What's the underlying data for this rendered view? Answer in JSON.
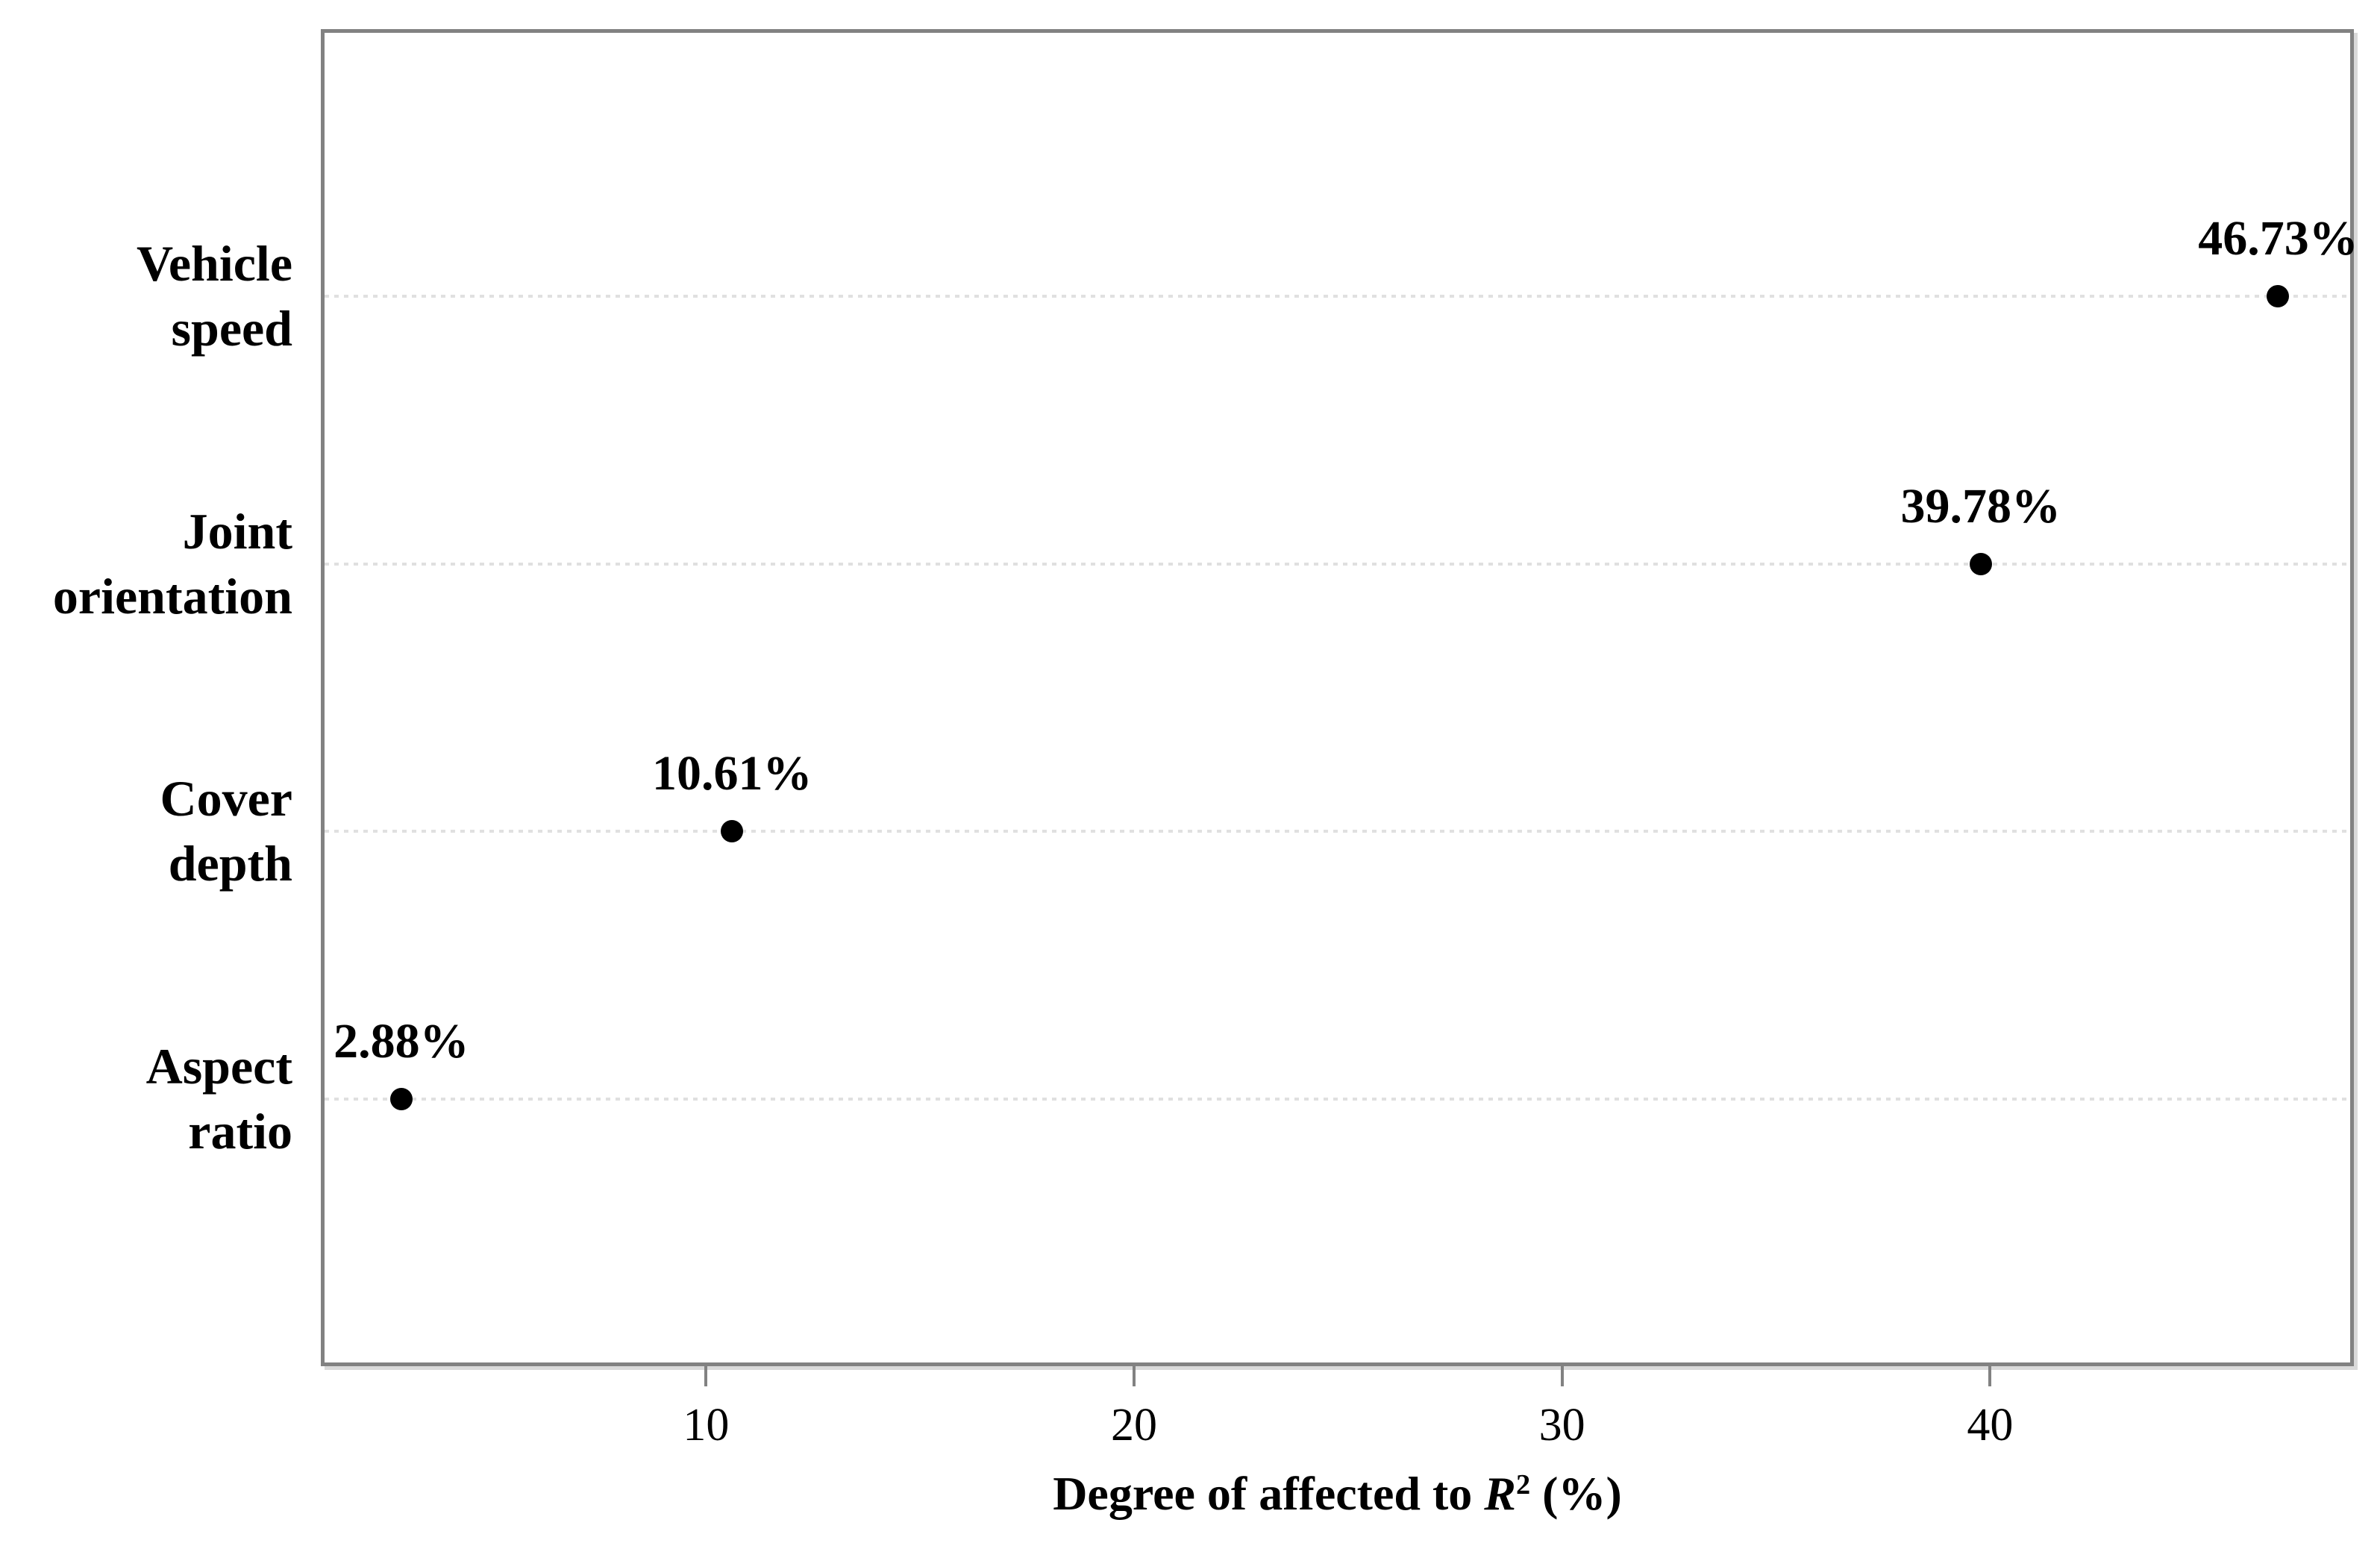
{
  "figure": {
    "background": "#ffffff",
    "x_axis_title": {
      "prefix": "Degree of affected to ",
      "symbol": "R",
      "superscript": "2",
      "suffix": " (%)"
    }
  },
  "chart_data": {
    "type": "scatter",
    "subtype": "horizontal-category-dot-plot",
    "title": "",
    "xlabel": "Degree of affected to R^2 (%)",
    "ylabel": "",
    "xlim": [
      1,
      48.5
    ],
    "x_ticks": [
      10,
      20,
      30,
      40
    ],
    "grid": "horizontal dotted lines, one per category",
    "legend": "none",
    "categories": [
      "Vehicle speed",
      "Joint orientation",
      "Cover depth",
      "Aspect ratio"
    ],
    "category_lines": [
      [
        "Vehicle",
        "speed"
      ],
      [
        "Joint",
        "orientation"
      ],
      [
        "Cover",
        "depth"
      ],
      [
        "Aspect",
        "ratio"
      ]
    ],
    "values": [
      46.73,
      39.78,
      10.61,
      2.88
    ],
    "point_labels": [
      "46.73%",
      "39.78%",
      "10.61%",
      "2.88%"
    ],
    "colors": {
      "point": "#000000",
      "text": "#000000",
      "plot_border": "#828282",
      "border_shadow": "#dadada",
      "gridline": "#e0e0e0",
      "tick_mark": "#828282"
    }
  }
}
